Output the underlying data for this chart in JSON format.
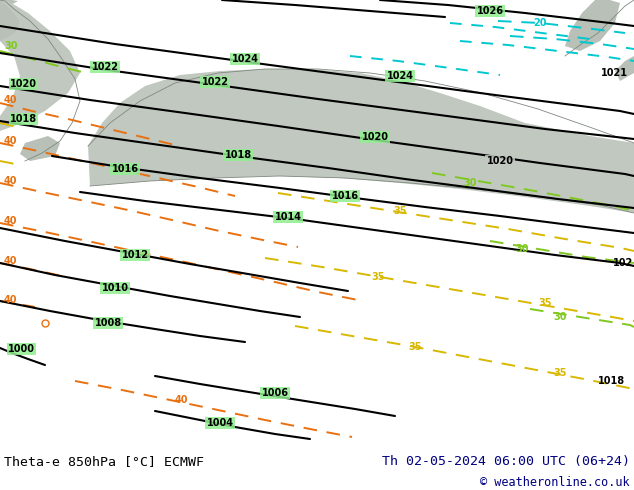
{
  "title_left": "Theta-e 850hPa [°C] ECMWF",
  "title_right": "Th 02-05-2024 06:00 UTC (06+24)",
  "title_right2": "© weatheronline.co.uk",
  "bg_green": "#90ee90",
  "gray_terrain": "#b8c0b8",
  "gray_terrain2": "#c0c8c0",
  "white": "#ffffff",
  "navy": "#000080",
  "black": "#000000"
}
